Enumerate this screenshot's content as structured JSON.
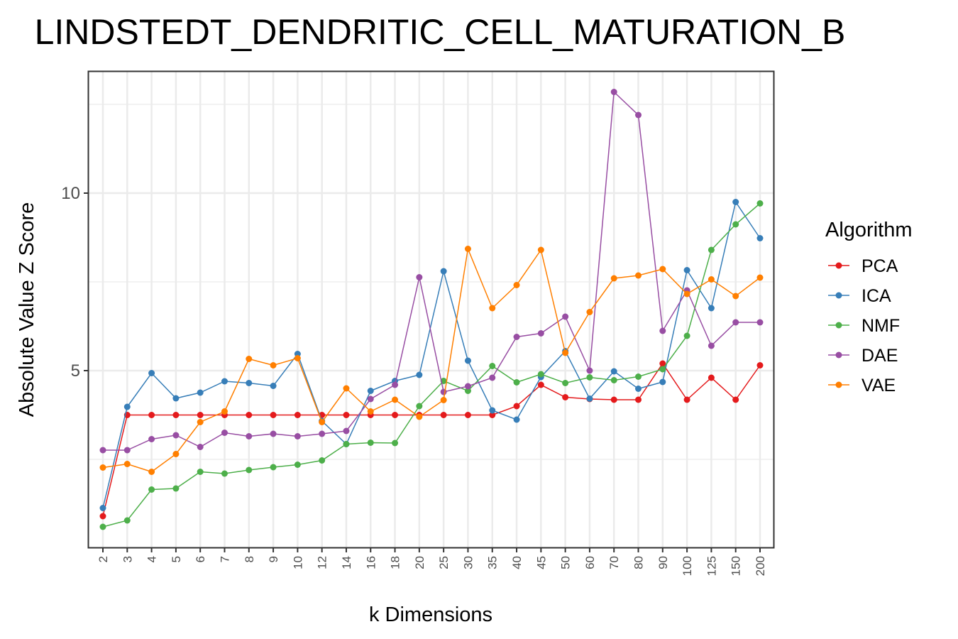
{
  "chart_data": {
    "type": "line",
    "title": "LINDSTEDT_DENDRITIC_CELL_MATURATION_B",
    "xlabel": "k Dimensions",
    "ylabel": "Absolute Value Z Score",
    "categories": [
      "2",
      "3",
      "4",
      "5",
      "6",
      "7",
      "8",
      "9",
      "10",
      "12",
      "14",
      "16",
      "18",
      "20",
      "25",
      "30",
      "35",
      "40",
      "45",
      "50",
      "60",
      "70",
      "80",
      "90",
      "100",
      "125",
      "150",
      "200"
    ],
    "yticks": [
      "5",
      "10"
    ],
    "ylim": [
      0.0,
      13.5
    ],
    "grid": true,
    "legend_title": "Algorithm",
    "legend_position": "right",
    "series": [
      {
        "name": "PCA",
        "color": "#e41a1c",
        "values": [
          0.9,
          3.75,
          3.75,
          3.75,
          3.75,
          3.75,
          3.75,
          3.75,
          3.75,
          3.75,
          3.75,
          3.75,
          3.75,
          3.75,
          3.75,
          3.75,
          3.75,
          4.0,
          4.6,
          4.25,
          4.2,
          4.18,
          4.18,
          5.2,
          4.18,
          4.8,
          4.18,
          5.15
        ]
      },
      {
        "name": "ICA",
        "color": "#377eb8",
        "values": [
          1.13,
          3.98,
          4.93,
          4.22,
          4.38,
          4.7,
          4.65,
          4.57,
          5.47,
          3.58,
          2.93,
          4.43,
          4.71,
          4.88,
          7.8,
          5.28,
          3.88,
          3.62,
          4.82,
          5.55,
          4.21,
          4.98,
          4.49,
          4.68,
          7.83,
          6.76,
          9.75,
          8.73
        ]
      },
      {
        "name": "NMF",
        "color": "#4daf4a",
        "values": [
          0.6,
          0.78,
          1.65,
          1.68,
          2.15,
          2.1,
          2.2,
          2.28,
          2.35,
          2.47,
          2.93,
          2.97,
          2.96,
          4.0,
          4.71,
          4.43,
          5.13,
          4.67,
          4.9,
          4.65,
          4.81,
          4.73,
          4.83,
          5.04,
          5.98,
          8.4,
          9.12,
          9.71
        ]
      },
      {
        "name": "DAE",
        "color": "#984ea3",
        "values": [
          2.76,
          2.76,
          3.07,
          3.18,
          2.85,
          3.25,
          3.15,
          3.22,
          3.15,
          3.22,
          3.3,
          4.2,
          4.6,
          7.63,
          4.4,
          4.56,
          4.8,
          5.95,
          6.05,
          6.52,
          5.0,
          12.85,
          12.2,
          6.12,
          7.26,
          5.7,
          6.36,
          6.36
        ]
      },
      {
        "name": "VAE",
        "color": "#ff7f00",
        "values": [
          2.27,
          2.37,
          2.15,
          2.65,
          3.55,
          3.85,
          5.33,
          5.15,
          5.35,
          3.55,
          4.5,
          3.85,
          4.18,
          3.7,
          4.17,
          8.43,
          6.76,
          7.41,
          8.4,
          5.5,
          6.65,
          7.6,
          7.68,
          7.86,
          7.16,
          7.57,
          7.1,
          7.62
        ]
      }
    ]
  }
}
